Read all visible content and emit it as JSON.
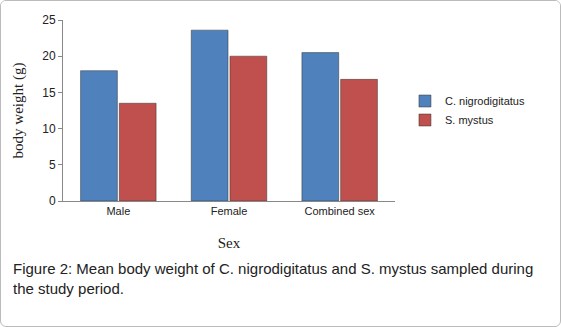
{
  "chart_data": {
    "type": "bar",
    "caption": "Figure 2: Mean body weight of C. nigrodigitatus and S. mystus sampled during the study period.",
    "x_label": "Sex",
    "y_label": "body weight (g)",
    "categories": [
      "Male",
      "Female",
      "Combined sex"
    ],
    "series": [
      {
        "name": "C. nigrodigitatus",
        "color": "#4f81bd",
        "values": [
          18.0,
          23.6,
          20.5
        ]
      },
      {
        "name": "S. mystus",
        "color": "#c0504d",
        "values": [
          13.5,
          20.0,
          16.8
        ]
      }
    ],
    "ylim": [
      0,
      25
    ],
    "yticks": [
      0,
      5,
      10,
      15,
      20,
      25
    ],
    "grid": false,
    "legend": "right"
  }
}
